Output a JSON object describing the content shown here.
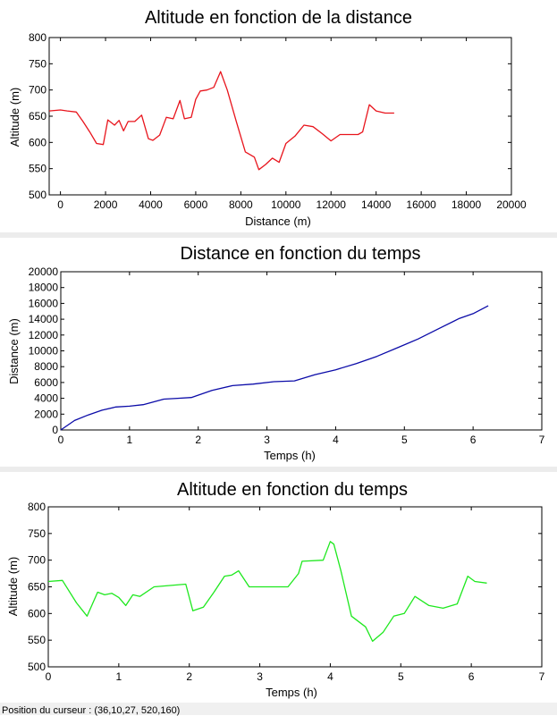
{
  "chart_data": [
    {
      "type": "line",
      "title": "Altitude en fonction de la distance",
      "xlabel": "Distance (m)",
      "ylabel": "Altitude (m)",
      "xlim": [
        -500,
        20000
      ],
      "ylim": [
        500,
        800
      ],
      "xticks": [
        0,
        2000,
        4000,
        6000,
        8000,
        10000,
        12000,
        14000,
        16000,
        18000,
        20000
      ],
      "yticks": [
        500,
        550,
        600,
        650,
        700,
        750,
        800
      ],
      "grid": false,
      "color": "#e8141c",
      "series": [
        {
          "x": [
            -500,
            0,
            300,
            700,
            1000,
            1300,
            1600,
            1900,
            2100,
            2400,
            2600,
            2800,
            3000,
            3300,
            3600,
            3900,
            4100,
            4400,
            4700,
            5000,
            5300,
            5500,
            5800,
            6000,
            6200,
            6500,
            6800,
            7100,
            7400,
            7800,
            8200,
            8600,
            8800,
            9100,
            9400,
            9700,
            10000,
            10400,
            10800,
            11200,
            11600,
            12000,
            12400,
            12800,
            13200,
            13400,
            13700,
            14000,
            14400,
            14800
          ],
          "y": [
            660,
            662,
            660,
            658,
            640,
            620,
            598,
            596,
            643,
            633,
            642,
            622,
            640,
            640,
            652,
            607,
            604,
            614,
            648,
            645,
            680,
            645,
            648,
            682,
            698,
            700,
            705,
            735,
            700,
            640,
            582,
            572,
            548,
            558,
            570,
            562,
            598,
            612,
            633,
            630,
            617,
            603,
            615,
            615,
            615,
            620,
            672,
            660,
            656,
            656
          ]
        }
      ]
    },
    {
      "type": "line",
      "title": "Distance en fonction du temps",
      "xlabel": "Temps (h)",
      "ylabel": "Distance (m)",
      "xlim": [
        0,
        7
      ],
      "ylim": [
        0,
        20000
      ],
      "xticks": [
        0,
        1,
        2,
        3,
        4,
        5,
        6,
        7
      ],
      "yticks": [
        0,
        2000,
        4000,
        6000,
        8000,
        10000,
        12000,
        14000,
        16000,
        18000,
        20000
      ],
      "grid": false,
      "color": "#0b0ba8",
      "series": [
        {
          "x": [
            0,
            0.2,
            0.4,
            0.6,
            0.8,
            1.0,
            1.2,
            1.5,
            1.7,
            1.9,
            2.2,
            2.5,
            2.8,
            3.1,
            3.4,
            3.7,
            4.0,
            4.3,
            4.6,
            4.9,
            5.2,
            5.5,
            5.8,
            6.0,
            6.22
          ],
          "y": [
            0,
            1200,
            1900,
            2500,
            2900,
            3000,
            3200,
            3900,
            4000,
            4100,
            5000,
            5600,
            5800,
            6100,
            6200,
            7000,
            7600,
            8400,
            9300,
            10400,
            11500,
            12800,
            14100,
            14700,
            15700
          ]
        }
      ]
    },
    {
      "type": "line",
      "title": "Altitude en fonction du temps",
      "xlabel": "Temps (h)",
      "ylabel": "Altitude (m)",
      "xlim": [
        0,
        7
      ],
      "ylim": [
        500,
        800
      ],
      "xticks": [
        0,
        1,
        2,
        3,
        4,
        5,
        6,
        7
      ],
      "yticks": [
        500,
        550,
        600,
        650,
        700,
        750,
        800
      ],
      "grid": false,
      "color": "#1ee81e",
      "series": [
        {
          "x": [
            0,
            0.2,
            0.4,
            0.55,
            0.7,
            0.8,
            0.9,
            1.0,
            1.1,
            1.2,
            1.3,
            1.5,
            1.95,
            2.05,
            2.2,
            2.35,
            2.5,
            2.6,
            2.7,
            2.85,
            3.4,
            3.55,
            3.6,
            3.9,
            4.0,
            4.05,
            4.15,
            4.3,
            4.5,
            4.6,
            4.75,
            4.9,
            5.05,
            5.2,
            5.4,
            5.6,
            5.8,
            5.95,
            6.05,
            6.22
          ],
          "y": [
            660,
            662,
            620,
            595,
            640,
            635,
            638,
            630,
            615,
            635,
            632,
            650,
            655,
            605,
            612,
            640,
            670,
            672,
            680,
            650,
            650,
            675,
            698,
            700,
            735,
            730,
            680,
            595,
            575,
            548,
            565,
            595,
            600,
            632,
            615,
            610,
            618,
            670,
            660,
            657
          ]
        }
      ]
    }
  ],
  "status_bar": {
    "text": "Position du curseur : (36,10,27, 520,160)"
  }
}
